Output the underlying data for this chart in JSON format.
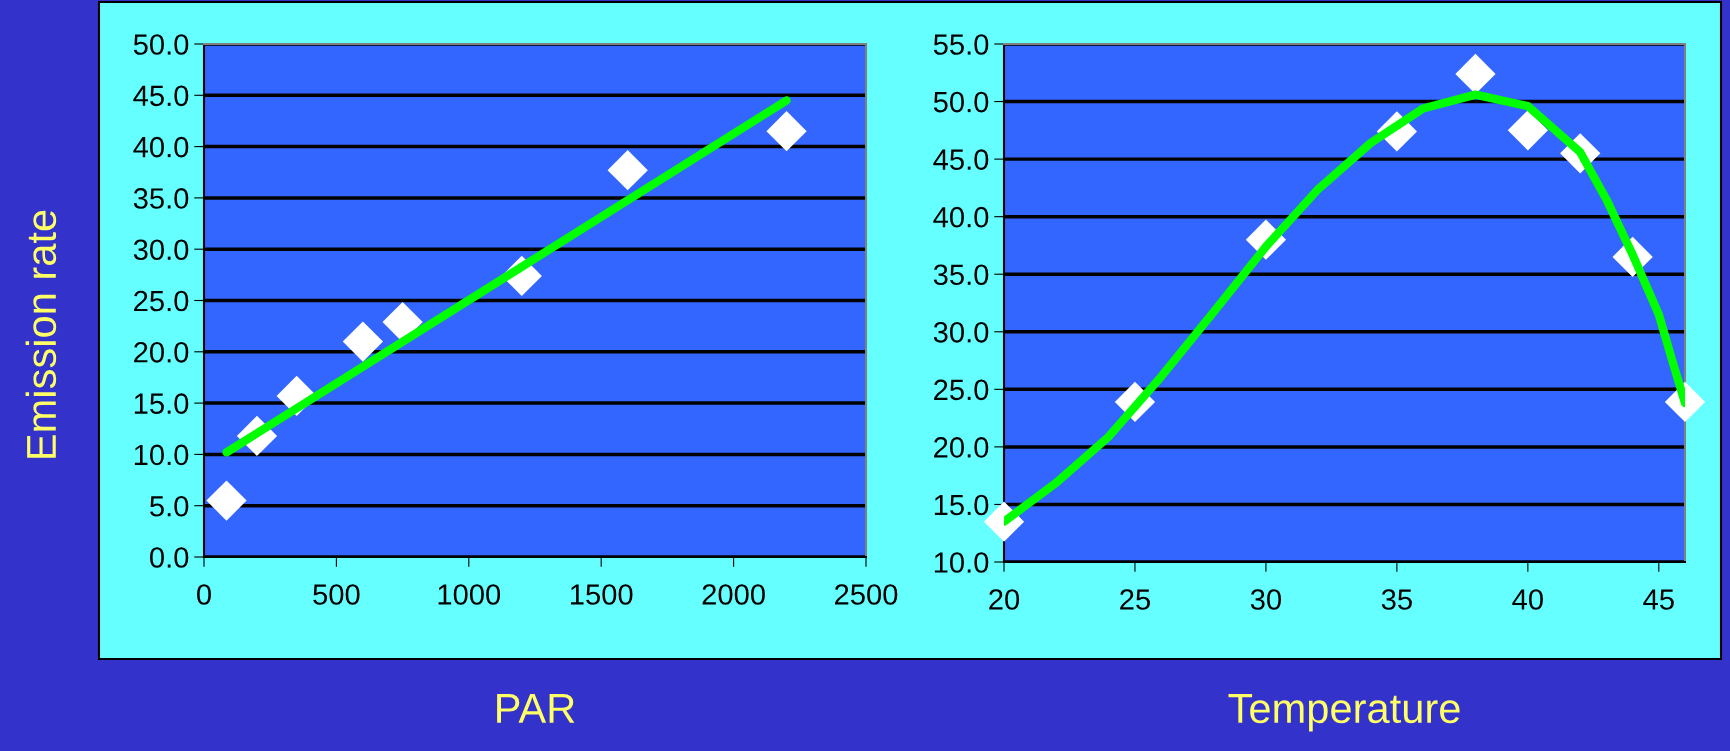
{
  "chart_data": [
    {
      "type": "scatter",
      "ylabel": "Emission rate",
      "xlabel": "PAR",
      "xlim": [
        0,
        2500
      ],
      "xticks": [
        0,
        500,
        1000,
        1500,
        2000,
        2500
      ],
      "ylim": [
        0,
        50
      ],
      "yticks": [
        {
          "value": 0,
          "label": "0.0"
        },
        {
          "value": 5,
          "label": "5.0"
        },
        {
          "value": 10,
          "label": "10.0"
        },
        {
          "value": 15,
          "label": "15.0"
        },
        {
          "value": 20,
          "label": "20.0"
        },
        {
          "value": 25,
          "label": "25.0"
        },
        {
          "value": 30,
          "label": "30.0"
        },
        {
          "value": 35,
          "label": "35.0"
        },
        {
          "value": 40,
          "label": "40.0"
        },
        {
          "value": 45,
          "label": "45.0"
        },
        {
          "value": 50,
          "label": "50.0"
        }
      ],
      "grid": "y",
      "series": [
        {
          "marker": "diamond",
          "color": "#ffffff",
          "x": [
            85,
            200,
            350,
            600,
            750,
            1200,
            1600,
            2200
          ],
          "values": [
            5.5,
            11.8,
            15.7,
            21.0,
            22.9,
            27.4,
            37.7,
            41.5
          ]
        },
        {
          "type": "line",
          "color": "#00ff00",
          "x": [
            85,
            2200
          ],
          "values": [
            10.2,
            44.5
          ]
        }
      ]
    },
    {
      "type": "scatter",
      "xlabel": "Temperature",
      "xlim": [
        20,
        46
      ],
      "xticks": [
        20,
        25,
        30,
        35,
        40,
        45
      ],
      "ylim": [
        10,
        55
      ],
      "yticks": [
        {
          "value": 10,
          "label": "10.0"
        },
        {
          "value": 15,
          "label": "15.0"
        },
        {
          "value": 20,
          "label": "20.0"
        },
        {
          "value": 25,
          "label": "25.0"
        },
        {
          "value": 30,
          "label": "30.0"
        },
        {
          "value": 35,
          "label": "35.0"
        },
        {
          "value": 40,
          "label": "40.0"
        },
        {
          "value": 45,
          "label": "45.0"
        },
        {
          "value": 50,
          "label": "50.0"
        },
        {
          "value": 55,
          "label": "55.0"
        }
      ],
      "grid": "y",
      "series": [
        {
          "marker": "diamond",
          "color": "#ffffff",
          "x": [
            20,
            25,
            30,
            35,
            38,
            40,
            42,
            44,
            46
          ],
          "values": [
            13.5,
            23.9,
            38.0,
            47.4,
            52.4,
            47.5,
            45.5,
            36.5,
            23.9
          ]
        },
        {
          "type": "line",
          "color": "#00ff00",
          "x": [
            20,
            22,
            24,
            26,
            28,
            30,
            32,
            34,
            36,
            38,
            40,
            42,
            43,
            44,
            45,
            45.5,
            46
          ],
          "values": [
            13.5,
            16.9,
            20.9,
            26.1,
            31.7,
            37.4,
            42.4,
            46.4,
            49.4,
            50.6,
            49.6,
            45.6,
            41.5,
            36.7,
            31.5,
            27.6,
            23.8
          ]
        }
      ]
    }
  ]
}
